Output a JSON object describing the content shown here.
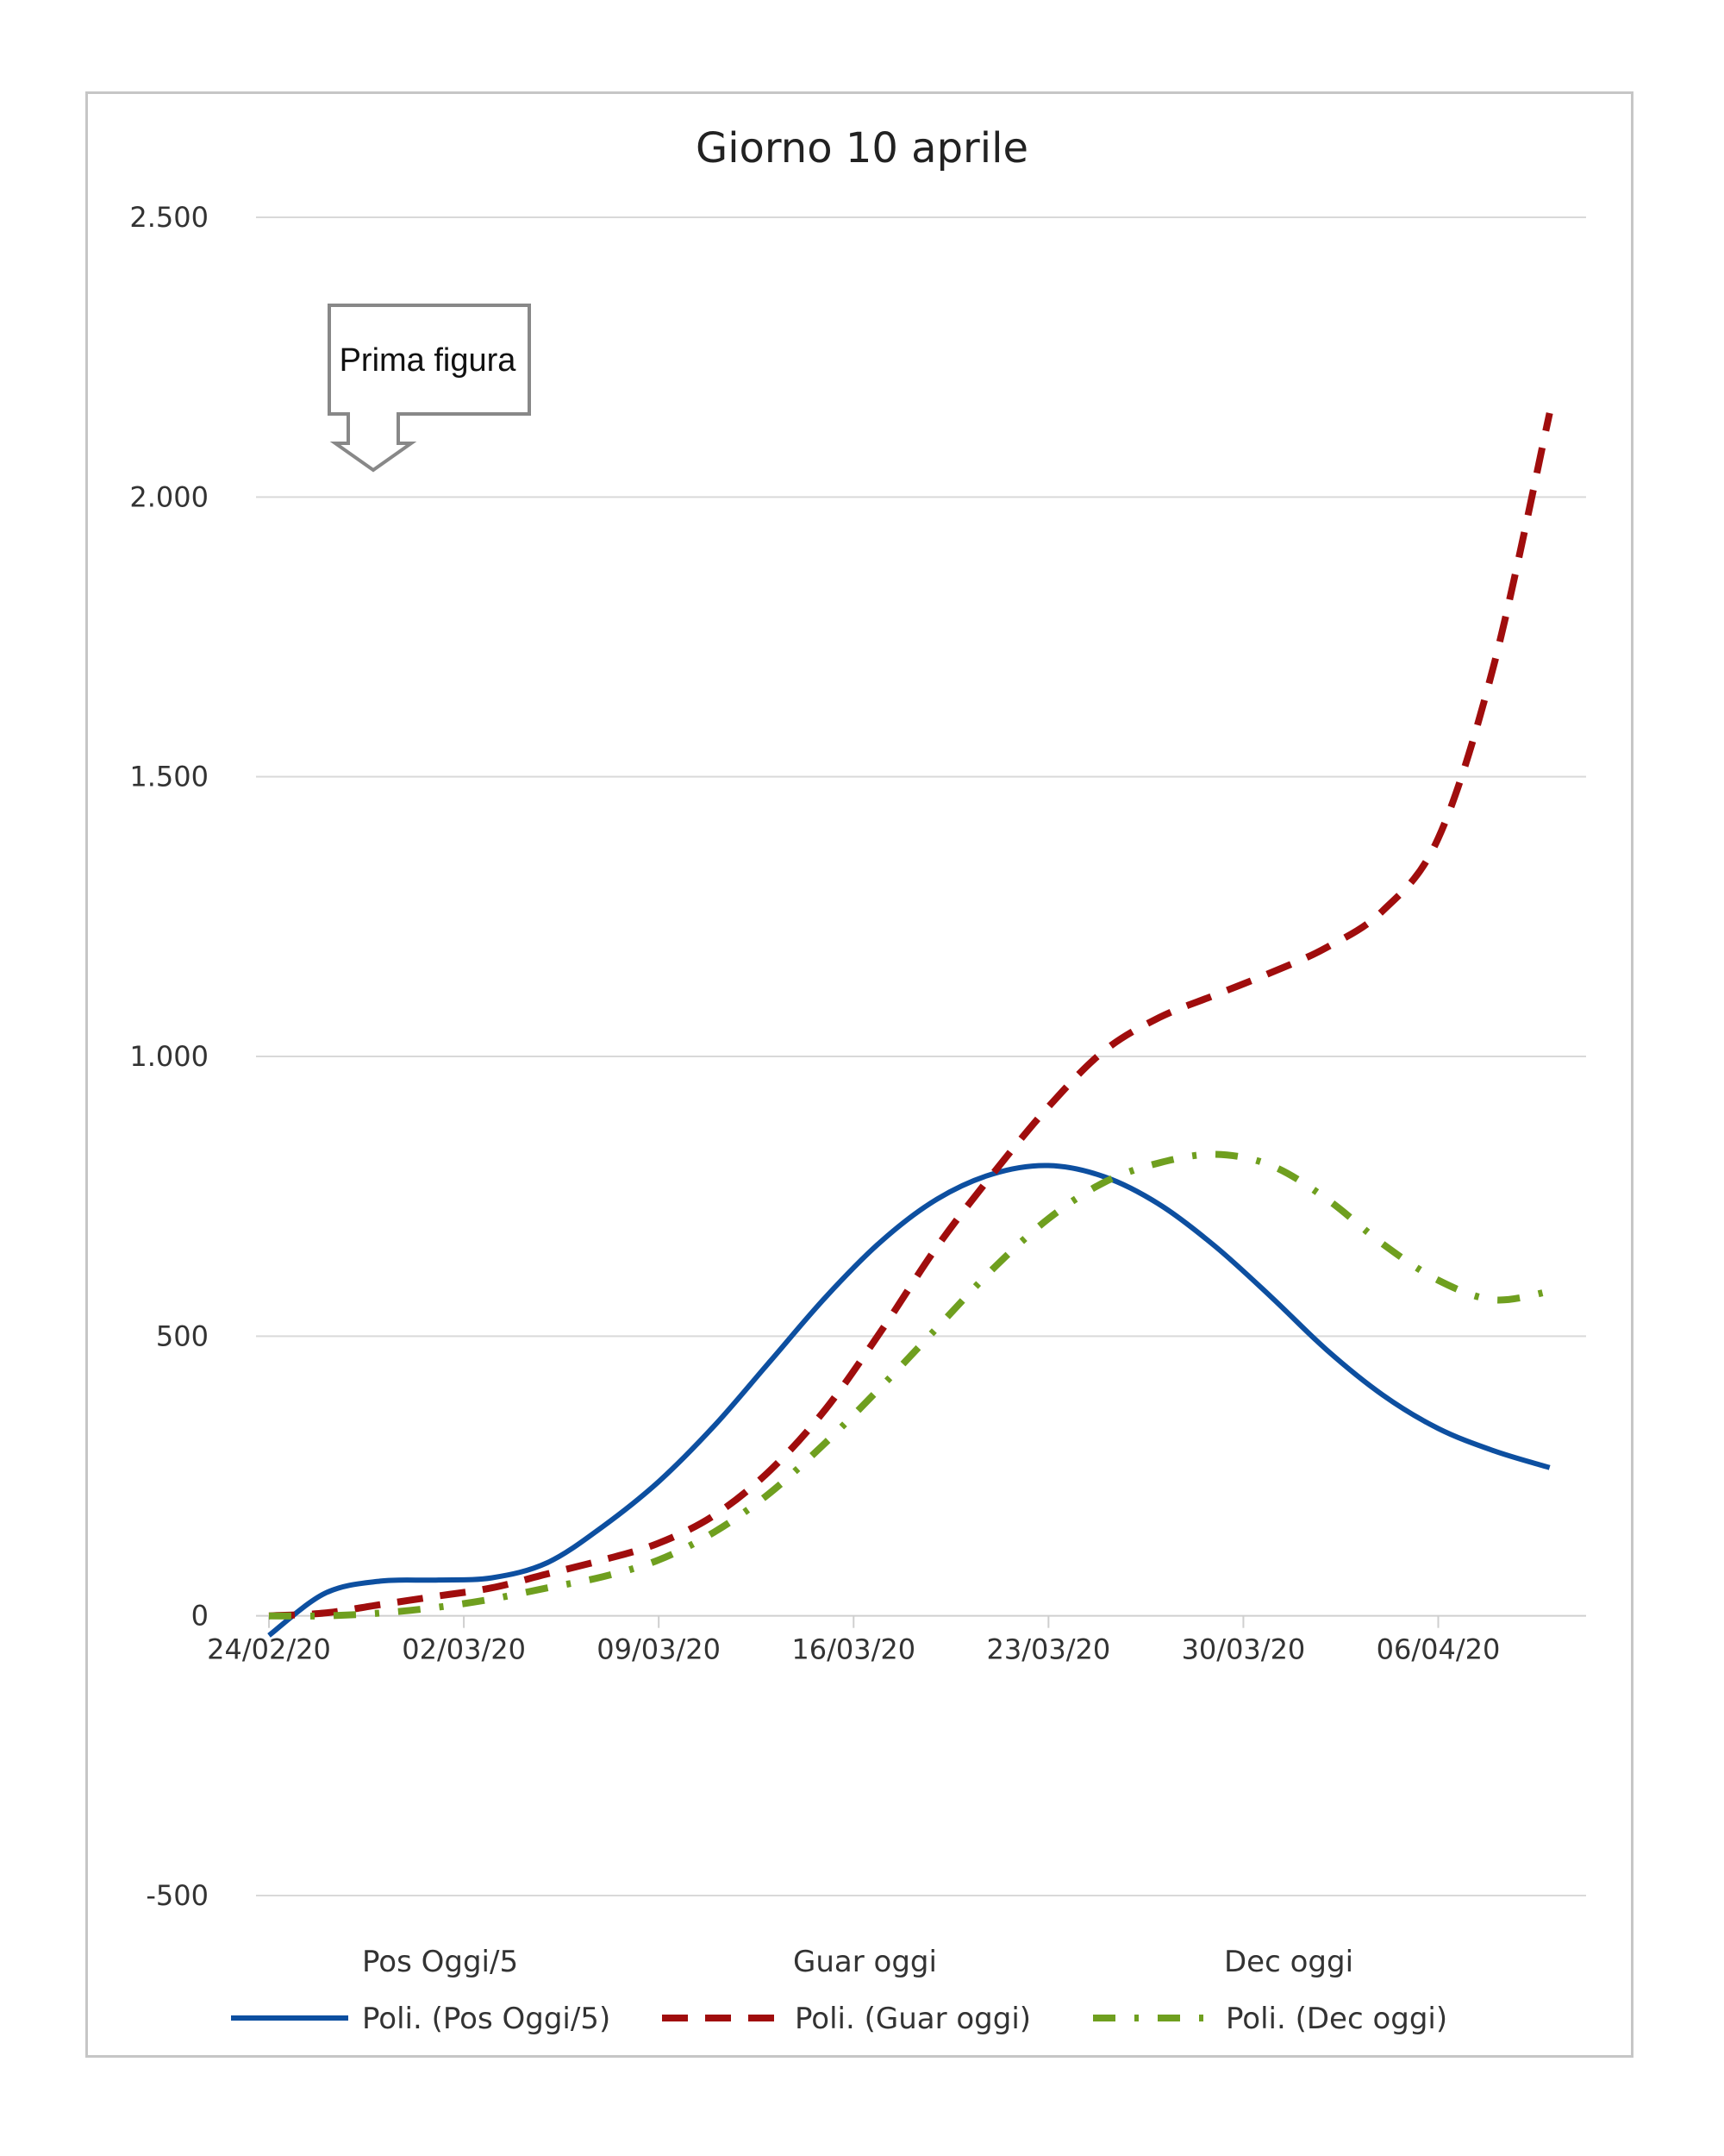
{
  "chart_data": {
    "type": "line",
    "title": "Giorno 10 aprile",
    "xlabel": "",
    "ylabel": "",
    "ylim": [
      -500,
      2500
    ],
    "yticks": [
      -500,
      0,
      500,
      1000,
      1500,
      2000,
      2500
    ],
    "ytick_labels": [
      "-500",
      "0",
      "500",
      "1.000",
      "1.500",
      "2.000",
      "2.500"
    ],
    "xlim": [
      "24/02/20",
      "11/04/20"
    ],
    "xtick_labels": [
      "24/02/20",
      "02/03/20",
      "09/03/20",
      "16/03/20",
      "23/03/20",
      "30/03/20",
      "06/04/20"
    ],
    "grid": true,
    "legend_position": "bottom",
    "legend_top_entries": [
      "Pos Oggi/5",
      "Guar oggi",
      "Dec oggi"
    ],
    "x": [
      "24/02/20",
      "26/02/20",
      "28/02/20",
      "01/03/20",
      "03/03/20",
      "05/03/20",
      "07/03/20",
      "09/03/20",
      "11/03/20",
      "13/03/20",
      "15/03/20",
      "17/03/20",
      "19/03/20",
      "21/03/20",
      "23/03/20",
      "25/03/20",
      "27/03/20",
      "29/03/20",
      "31/03/20",
      "02/04/20",
      "04/04/20",
      "06/04/20",
      "08/04/20",
      "10/04/20"
    ],
    "series": [
      {
        "name": "Poli. (Pos Oggi/5)",
        "color": "#0d4fa0",
        "style": "solid",
        "values": [
          -35,
          40,
          62,
          64,
          68,
          95,
          160,
          240,
          340,
          455,
          570,
          670,
          745,
          790,
          805,
          785,
          735,
          660,
          570,
          475,
          395,
          335,
          295,
          265
        ]
      },
      {
        "name": "Poli. (Guar oggi)",
        "color": "#a00d0d",
        "style": "dashed",
        "values": [
          0,
          5,
          20,
          35,
          50,
          75,
          100,
          130,
          180,
          260,
          370,
          510,
          660,
          790,
          910,
          1010,
          1070,
          1110,
          1150,
          1195,
          1260,
          1390,
          1700,
          2150
        ]
      },
      {
        "name": "Poli. (Dec oggi)",
        "color": "#6f9f1f",
        "style": "dash-dot",
        "values": [
          0,
          0,
          5,
          15,
          30,
          50,
          70,
          100,
          150,
          220,
          310,
          410,
          515,
          620,
          710,
          775,
          810,
          825,
          805,
          745,
          665,
          600,
          565,
          580
        ]
      }
    ]
  },
  "annotation": {
    "text": "Prima figura"
  }
}
